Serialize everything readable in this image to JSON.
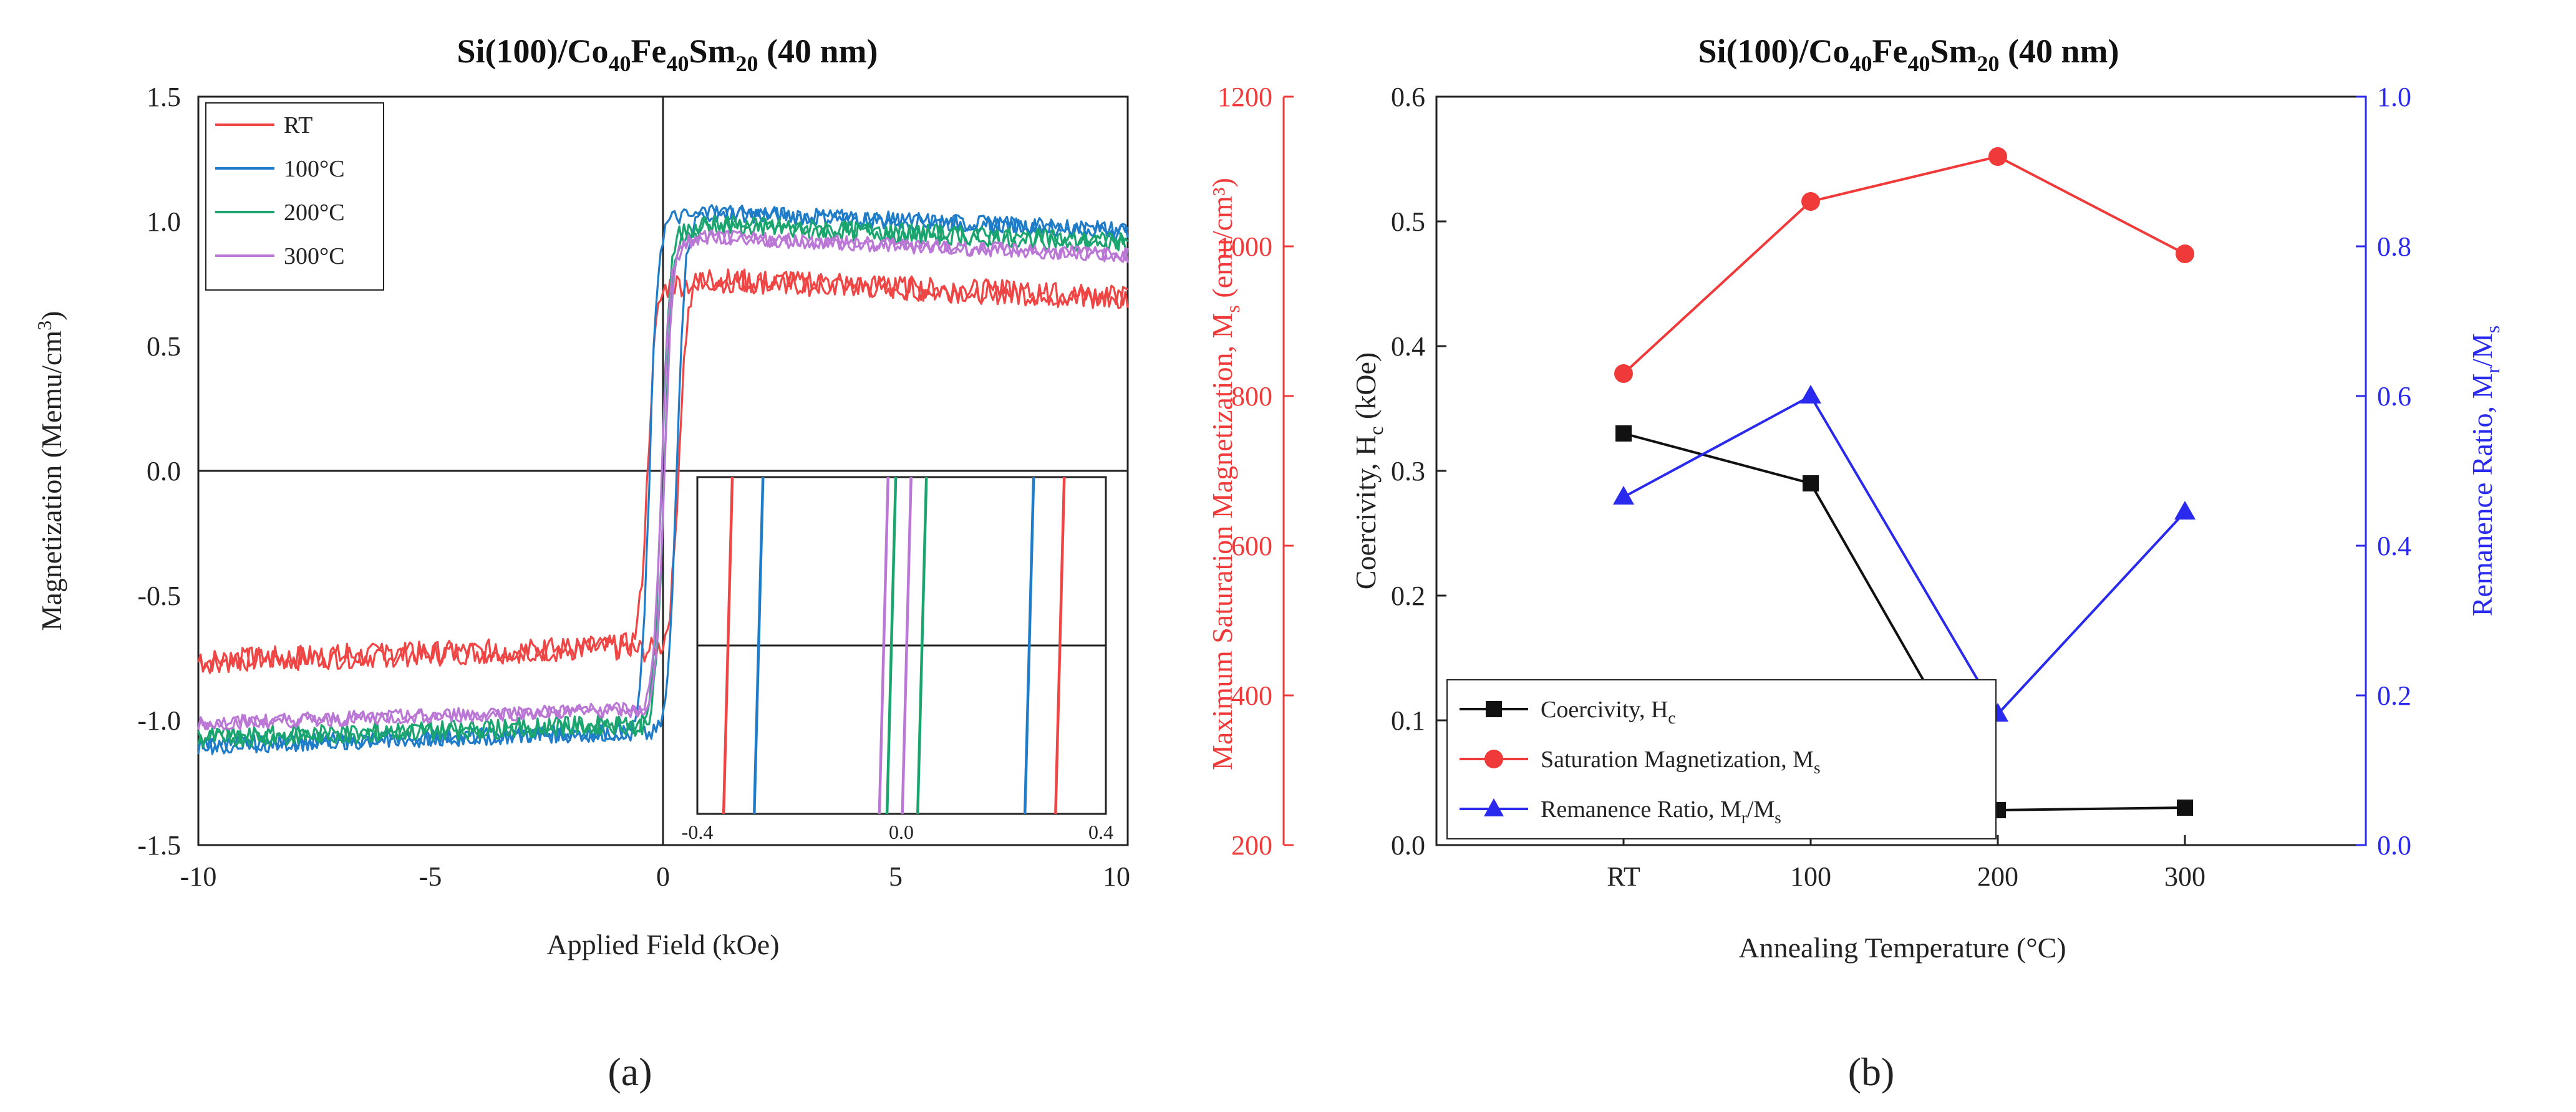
{
  "chart_data": [
    {
      "panel": "(a)",
      "type": "line",
      "title": "Si(100)/Co40Fe40Sm20 (40 nm)",
      "title_parts": {
        "base": "Si(100)/Co",
        "sub1": "40",
        "mid1": "Fe",
        "sub2": "40",
        "mid2": "Sm",
        "sub3": "20",
        "tail": " (40 nm)"
      },
      "xlabel": "Applied Field (kOe)",
      "ylabel": "Magnetization (Memu/cm",
      "ylabel_sup": "3",
      "ylabel_close": ")",
      "xlim": [
        -10,
        10
      ],
      "ylim": [
        -1.5,
        1.5
      ],
      "xticks": [
        "-10",
        "-5",
        "0",
        "5",
        "10"
      ],
      "yticks": [
        "-1.5",
        "-1.0",
        "-0.5",
        "0.0",
        "0.5",
        "1.0",
        "1.5"
      ],
      "series": [
        {
          "name": "RT",
          "color": "#f04545",
          "saturation": 0.75,
          "neg_saturation": -0.72,
          "coercivity": 0.33,
          "noise": 0.05
        },
        {
          "name": "100°C",
          "color": "#1f7cc9",
          "saturation": 1.02,
          "neg_saturation": -1.06,
          "coercivity": 0.29,
          "noise": 0.035
        },
        {
          "name": "200°C",
          "color": "#1aa56f",
          "saturation": 0.97,
          "neg_saturation": -1.03,
          "coercivity": 0.028,
          "noise": 0.04
        },
        {
          "name": "300°C",
          "color": "#bb77d6",
          "saturation": 0.92,
          "neg_saturation": -0.97,
          "coercivity": 0.03,
          "noise": 0.03
        }
      ],
      "inset": {
        "xlim": [
          -0.4,
          0.4
        ],
        "xtick_labels": [
          "-0.4",
          "0.0",
          "0.4"
        ],
        "lines": [
          {
            "series": "RT",
            "x": [
              -0.34,
              0.31
            ]
          },
          {
            "series": "100°C",
            "x": [
              -0.28,
              0.25
            ]
          },
          {
            "series": "200°C",
            "x": [
              -0.02,
              0.04
            ]
          },
          {
            "series": "300°C",
            "x": [
              -0.035,
              0.01
            ]
          }
        ]
      }
    },
    {
      "panel": "(b)",
      "type": "line",
      "title": "Si(100)/Co40Fe40Sm20 (40 nm)",
      "xlabel": "Annealing Temperature (°C)",
      "categories": [
        "RT",
        "100",
        "200",
        "300"
      ],
      "left_axis": {
        "label": "Coercivity, H",
        "label_sub": "c",
        "label_tail": " (kOe)",
        "ylim": [
          0,
          0.6
        ],
        "ticks": [
          "0.0",
          "0.1",
          "0.2",
          "0.3",
          "0.4",
          "0.5",
          "0.6"
        ]
      },
      "outer_left_axis": {
        "label": "Maximum Saturation Magnetization, M",
        "label_sub": "s",
        "label_tail": " (emu/cm³)",
        "ylim": [
          200,
          1200
        ],
        "ticks": [
          "200",
          "400",
          "600",
          "800",
          "1000",
          "1200"
        ],
        "color": "#f03a3a"
      },
      "right_axis": {
        "label": "Remanence Ratio, M",
        "label_sub1": "r",
        "label_mid": "/M",
        "label_sub2": "s",
        "ylim": [
          0,
          1.0
        ],
        "ticks": [
          "0.0",
          "0.2",
          "0.4",
          "0.6",
          "0.8",
          "1.0"
        ],
        "color": "#2a2aee"
      },
      "series": [
        {
          "name": "Coercivity, H",
          "name_sub": "c",
          "axis": "left",
          "color": "#111111",
          "marker": "square",
          "values": [
            0.33,
            0.29,
            0.028,
            0.03
          ]
        },
        {
          "name": "Saturation Magnetization, M",
          "name_sub": "s",
          "axis": "outer_left",
          "color": "#f03a3a",
          "marker": "circle",
          "values": [
            830,
            1060,
            1120,
            990
          ]
        },
        {
          "name": "Remanence Ratio, M",
          "name_sub": "r",
          "name_mid": "/M",
          "name_sub2": "s",
          "axis": "right",
          "color": "#2a2aee",
          "marker": "triangle",
          "values": [
            0.465,
            0.6,
            0.175,
            0.445
          ]
        }
      ]
    }
  ]
}
